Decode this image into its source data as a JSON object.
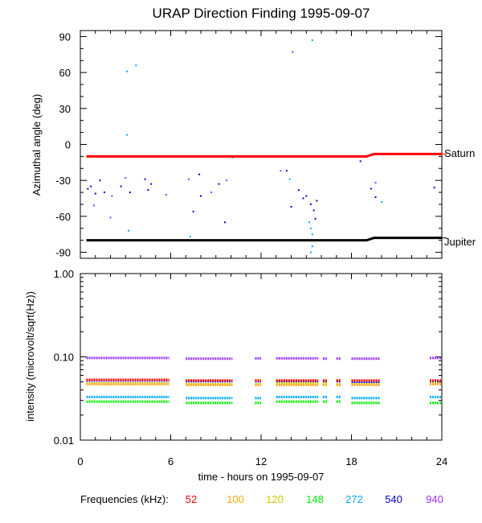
{
  "title": "URAP Direction Finding  1995-09-07",
  "x_axis": {
    "label": "time - hours on 1995-09-07",
    "range": [
      0,
      24
    ],
    "ticks": [
      0,
      6,
      12,
      18,
      24
    ],
    "tick_labels": [
      "0",
      "6",
      "12",
      "18",
      "24"
    ]
  },
  "frequencies": {
    "label": "Frequencies (kHz):",
    "items": [
      {
        "value": "52",
        "color": "#ff0000"
      },
      {
        "value": "100",
        "color": "#ffa500"
      },
      {
        "value": "120",
        "color": "#cccc00"
      },
      {
        "value": "148",
        "color": "#00ee00"
      },
      {
        "value": "272",
        "color": "#00aaff"
      },
      {
        "value": "540",
        "color": "#0000dd"
      },
      {
        "value": "940",
        "color": "#9933ff"
      }
    ]
  },
  "chart_data": [
    {
      "type": "line",
      "panel": "azimuth",
      "title": "URAP Direction Finding  1995-09-07",
      "ylabel": "Azimuthal angle (deg)",
      "xlim": [
        0,
        24
      ],
      "ylim": [
        -95,
        95
      ],
      "yticks": [
        90,
        60,
        30,
        0,
        -30,
        -60,
        -90
      ],
      "ytick_labels": [
        "90",
        "60",
        "30",
        "0",
        "-30",
        "-60",
        "-90"
      ],
      "series": [
        {
          "name": "Saturn",
          "color": "#ff0000",
          "x": [
            0.4,
            19.0,
            19.5,
            24
          ],
          "y": [
            -10,
            -10,
            -8,
            -8
          ]
        },
        {
          "name": "Jupiter",
          "color": "#000000",
          "x": [
            0.4,
            19.0,
            19.5,
            24
          ],
          "y": [
            -80,
            -80,
            -78,
            -78
          ]
        }
      ],
      "scatter": [
        {
          "x": 3.1,
          "y": 61,
          "color": "#00aaff"
        },
        {
          "x": 3.7,
          "y": 66,
          "color": "#00aaff"
        },
        {
          "x": 3.1,
          "y": 8,
          "color": "#00aaff"
        },
        {
          "x": 14.1,
          "y": 77,
          "color": "#9933ff"
        },
        {
          "x": 15.4,
          "y": 87,
          "color": "#00aaff"
        },
        {
          "x": 0.5,
          "y": -37,
          "color": "#0000dd"
        },
        {
          "x": 0.7,
          "y": -35,
          "color": "#0000dd"
        },
        {
          "x": 1.0,
          "y": -41,
          "color": "#0000dd"
        },
        {
          "x": 1.3,
          "y": -30,
          "color": "#0000dd"
        },
        {
          "x": 1.6,
          "y": -40,
          "color": "#0000dd"
        },
        {
          "x": 2.1,
          "y": -43,
          "color": "#9933ff"
        },
        {
          "x": 2.7,
          "y": -35,
          "color": "#0000dd"
        },
        {
          "x": 3.0,
          "y": -28,
          "color": "#9933ff"
        },
        {
          "x": 3.3,
          "y": -40,
          "color": "#0000dd"
        },
        {
          "x": 4.3,
          "y": -29,
          "color": "#0000dd"
        },
        {
          "x": 4.7,
          "y": -33,
          "color": "#0000dd"
        },
        {
          "x": 4.5,
          "y": -38,
          "color": "#0000dd"
        },
        {
          "x": 5.7,
          "y": -42,
          "color": "#9933ff"
        },
        {
          "x": 0.9,
          "y": -51,
          "color": "#9933ff"
        },
        {
          "x": 2.0,
          "y": -61,
          "color": "#9933ff"
        },
        {
          "x": 3.2,
          "y": -72,
          "color": "#00aaff"
        },
        {
          "x": 7.2,
          "y": -29,
          "color": "#9933ff"
        },
        {
          "x": 7.5,
          "y": -56,
          "color": "#0000dd"
        },
        {
          "x": 7.9,
          "y": -25,
          "color": "#0000dd"
        },
        {
          "x": 8.0,
          "y": -43,
          "color": "#0000dd"
        },
        {
          "x": 8.7,
          "y": -40,
          "color": "#9933ff"
        },
        {
          "x": 9.2,
          "y": -33,
          "color": "#0000dd"
        },
        {
          "x": 9.7,
          "y": -30,
          "color": "#9933ff"
        },
        {
          "x": 9.6,
          "y": -65,
          "color": "#0000dd"
        },
        {
          "x": 7.3,
          "y": -77,
          "color": "#00aaff"
        },
        {
          "x": 10.1,
          "y": -11,
          "color": "#00aaff"
        },
        {
          "x": 13.3,
          "y": -22,
          "color": "#9933ff"
        },
        {
          "x": 13.7,
          "y": -22,
          "color": "#0000dd"
        },
        {
          "x": 13.9,
          "y": -29,
          "color": "#00aaff"
        },
        {
          "x": 14.0,
          "y": -52,
          "color": "#0000dd"
        },
        {
          "x": 14.5,
          "y": -38,
          "color": "#0000dd"
        },
        {
          "x": 14.8,
          "y": -45,
          "color": "#0000dd"
        },
        {
          "x": 15.0,
          "y": -43,
          "color": "#0000dd"
        },
        {
          "x": 15.3,
          "y": -50,
          "color": "#0000dd"
        },
        {
          "x": 15.5,
          "y": -55,
          "color": "#0000dd"
        },
        {
          "x": 15.7,
          "y": -47,
          "color": "#0000dd"
        },
        {
          "x": 15.2,
          "y": -65,
          "color": "#00aaff"
        },
        {
          "x": 15.3,
          "y": -70,
          "color": "#00aaff"
        },
        {
          "x": 15.4,
          "y": -75,
          "color": "#00aaff"
        },
        {
          "x": 15.5,
          "y": -80,
          "color": "#00aaff"
        },
        {
          "x": 15.4,
          "y": -85,
          "color": "#00aaff"
        },
        {
          "x": 15.3,
          "y": -90,
          "color": "#00aaff"
        },
        {
          "x": 15.6,
          "y": -62,
          "color": "#0000dd"
        },
        {
          "x": 18.6,
          "y": -14,
          "color": "#0000dd"
        },
        {
          "x": 19.3,
          "y": -37,
          "color": "#0000dd"
        },
        {
          "x": 19.6,
          "y": -32,
          "color": "#9933ff"
        },
        {
          "x": 19.6,
          "y": -44,
          "color": "#0000dd"
        },
        {
          "x": 20.0,
          "y": -48,
          "color": "#00aaff"
        },
        {
          "x": 23.5,
          "y": -36,
          "color": "#0000dd"
        }
      ],
      "annotations": [
        "Saturn",
        "Jupiter"
      ]
    },
    {
      "type": "line",
      "panel": "intensity",
      "ylabel": "intensity (microvolt/sqrt(Hz))",
      "yscale": "log",
      "xlim": [
        0,
        24
      ],
      "ylim": [
        0.01,
        1.0
      ],
      "yticks": [
        1.0,
        0.1,
        0.01
      ],
      "ytick_labels": [
        "1.00",
        "0.10",
        "0.01"
      ],
      "segments": [
        [
          0.4,
          5.9
        ],
        [
          7.0,
          10.1
        ],
        [
          11.6,
          12.0
        ],
        [
          13.0,
          15.8
        ],
        [
          16.1,
          16.4
        ],
        [
          17.0,
          17.3
        ],
        [
          18.0,
          19.9
        ],
        [
          23.2,
          24.0
        ]
      ],
      "series": [
        {
          "name": "940",
          "color": "#9933ff",
          "values": [
            0.097,
            0.095,
            0.096,
            0.096,
            0.095,
            0.095,
            0.095,
            0.097
          ]
        },
        {
          "name": "540",
          "color": "#0000dd",
          "values": [
            0.052,
            0.051,
            0.051,
            0.051,
            0.051,
            0.051,
            0.05,
            0.051
          ]
        },
        {
          "name": "52",
          "color": "#ff0000",
          "values": [
            0.053,
            0.052,
            0.052,
            0.052,
            0.052,
            0.052,
            0.052,
            0.052
          ]
        },
        {
          "name": "120",
          "color": "#cccc00",
          "values": [
            0.048,
            0.047,
            0.047,
            0.048,
            0.048,
            0.047,
            0.047,
            0.048
          ]
        },
        {
          "name": "100",
          "color": "#ffa500",
          "values": [
            0.047,
            0.046,
            0.046,
            0.046,
            0.046,
            0.046,
            0.046,
            0.047
          ]
        },
        {
          "name": "272",
          "color": "#00aaff",
          "values": [
            0.033,
            0.032,
            0.032,
            0.033,
            0.033,
            0.033,
            0.032,
            0.033
          ]
        },
        {
          "name": "148",
          "color": "#00ee00",
          "values": [
            0.029,
            0.028,
            0.028,
            0.029,
            0.029,
            0.029,
            0.028,
            0.028
          ]
        }
      ]
    }
  ]
}
